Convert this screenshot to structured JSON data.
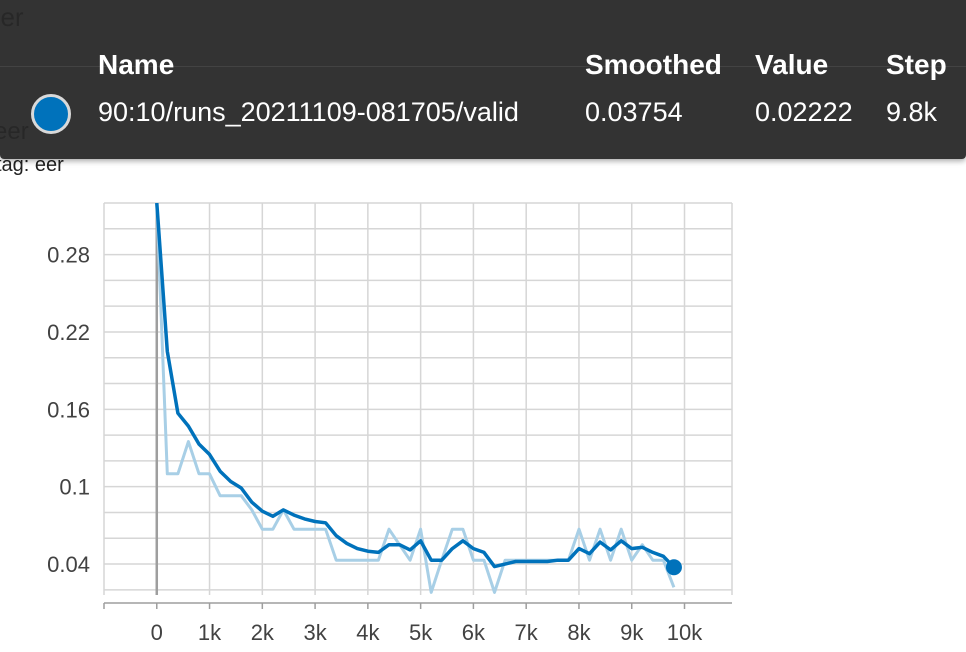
{
  "card": {
    "title": "eer",
    "title_repeat": "eer",
    "tag": "tag: eer"
  },
  "tooltip": {
    "headers": {
      "name": "Name",
      "smoothed": "Smoothed",
      "value": "Value",
      "step": "Step"
    },
    "row": {
      "name": "90:10/runs_20211109-081705/valid",
      "smoothed": "0.03754",
      "value": "0.02222",
      "step": "9.8k",
      "color": "#0072bb"
    }
  },
  "chart_data": {
    "type": "line",
    "title": "eer",
    "xlabel": "",
    "ylabel": "",
    "xlim": [
      -1000,
      10900
    ],
    "ylim": [
      0.016,
      0.32
    ],
    "grid": true,
    "x_ticks": [
      0,
      1000,
      2000,
      3000,
      4000,
      5000,
      6000,
      7000,
      8000,
      9000,
      10000
    ],
    "x_tick_labels": [
      "0",
      "1k",
      "2k",
      "3k",
      "4k",
      "5k",
      "6k",
      "7k",
      "8k",
      "9k",
      "10k"
    ],
    "y_ticks": [
      0.04,
      0.1,
      0.16,
      0.22,
      0.28
    ],
    "y_tick_labels": [
      "0.04",
      "0.1",
      "0.16",
      "0.22",
      "0.28"
    ],
    "series": [
      {
        "name": "90:10/runs_20211109-081705/valid",
        "role": "raw",
        "color": "#a8cfe6",
        "x": [
          0,
          200,
          400,
          600,
          800,
          1000,
          1200,
          1400,
          1600,
          1800,
          2000,
          2200,
          2400,
          2600,
          2800,
          3000,
          3200,
          3400,
          3600,
          3800,
          4000,
          4200,
          4400,
          4600,
          4800,
          5000,
          5200,
          5400,
          5600,
          5800,
          6000,
          6200,
          6400,
          6600,
          6800,
          7000,
          7200,
          7400,
          7600,
          7800,
          8000,
          8200,
          8400,
          8600,
          8800,
          9000,
          9200,
          9400,
          9600,
          9800
        ],
        "y": [
          0.32,
          0.11,
          0.11,
          0.135,
          0.11,
          0.11,
          0.093,
          0.093,
          0.093,
          0.082,
          0.067,
          0.067,
          0.082,
          0.067,
          0.067,
          0.067,
          0.067,
          0.043,
          0.043,
          0.043,
          0.043,
          0.043,
          0.067,
          0.055,
          0.043,
          0.067,
          0.018,
          0.043,
          0.067,
          0.067,
          0.043,
          0.043,
          0.018,
          0.043,
          0.043,
          0.043,
          0.043,
          0.043,
          0.043,
          0.043,
          0.067,
          0.043,
          0.067,
          0.043,
          0.067,
          0.043,
          0.055,
          0.043,
          0.043,
          0.022
        ]
      },
      {
        "name": "90:10/runs_20211109-081705/valid",
        "role": "smoothed",
        "color": "#0072bb",
        "x": [
          0,
          200,
          400,
          600,
          800,
          1000,
          1200,
          1400,
          1600,
          1800,
          2000,
          2200,
          2400,
          2600,
          2800,
          3000,
          3200,
          3400,
          3600,
          3800,
          4000,
          4200,
          4400,
          4600,
          4800,
          5000,
          5200,
          5400,
          5600,
          5800,
          6000,
          6200,
          6400,
          6600,
          6800,
          7000,
          7200,
          7400,
          7600,
          7800,
          8000,
          8200,
          8400,
          8600,
          8800,
          9000,
          9200,
          9400,
          9600,
          9800
        ],
        "y": [
          0.32,
          0.205,
          0.157,
          0.147,
          0.133,
          0.125,
          0.112,
          0.104,
          0.099,
          0.088,
          0.081,
          0.077,
          0.082,
          0.078,
          0.075,
          0.073,
          0.072,
          0.062,
          0.056,
          0.052,
          0.05,
          0.049,
          0.055,
          0.055,
          0.051,
          0.058,
          0.043,
          0.043,
          0.052,
          0.058,
          0.052,
          0.049,
          0.038,
          0.04,
          0.042,
          0.042,
          0.042,
          0.042,
          0.043,
          0.043,
          0.052,
          0.048,
          0.057,
          0.051,
          0.058,
          0.052,
          0.053,
          0.049,
          0.046,
          0.03754
        ]
      }
    ]
  }
}
